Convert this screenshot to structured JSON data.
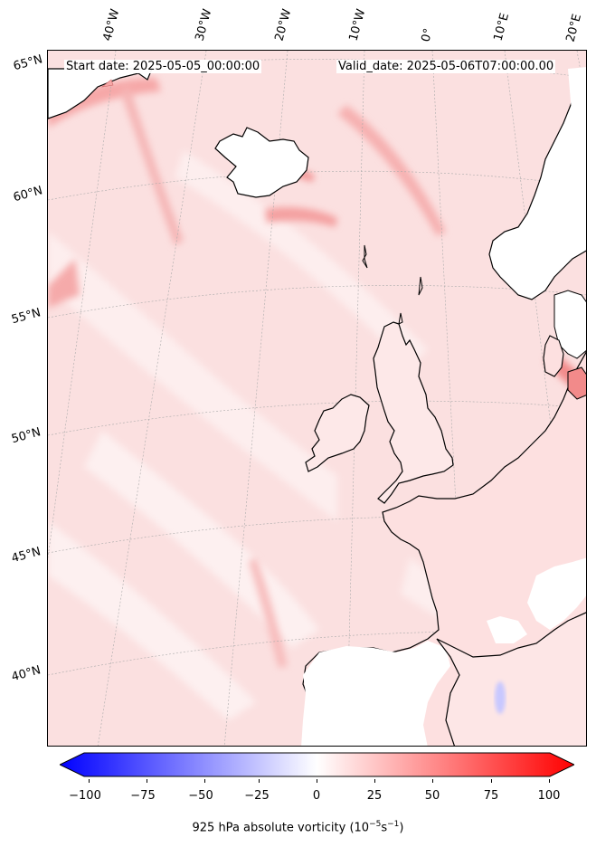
{
  "header": {
    "start_date": "Start date: 2025-05-05_00:00:00",
    "valid_date": "Valid_date: 2025-05-06T07:00:00.00"
  },
  "grid_labels": {
    "lon": [
      "40°W",
      "30°W",
      "20°W",
      "10°W",
      "0°",
      "10°E",
      "20°E"
    ],
    "lat": [
      "65°N",
      "60°N",
      "55°N",
      "50°N",
      "45°N",
      "40°N"
    ]
  },
  "colorbar": {
    "title": "925 hPa absolute vorticity (10",
    "title_sup1": "−5",
    "title_mid": "s",
    "title_sup2": "−1",
    "title_end": ")",
    "ticks": [
      "−100",
      "−75",
      "−50",
      "−25",
      "0",
      "25",
      "50",
      "75",
      "100"
    ],
    "min": -100,
    "max": 100,
    "colors": {
      "low": "#0000ff",
      "mid": "#ffffff",
      "high": "#ff0000"
    }
  },
  "map": {
    "region": "North Atlantic and Western Europe",
    "field_color": "#fbdcdc",
    "land_color": "#ffffff",
    "coastline_color": "#000000",
    "gridline_color": "#aaaaaa"
  }
}
